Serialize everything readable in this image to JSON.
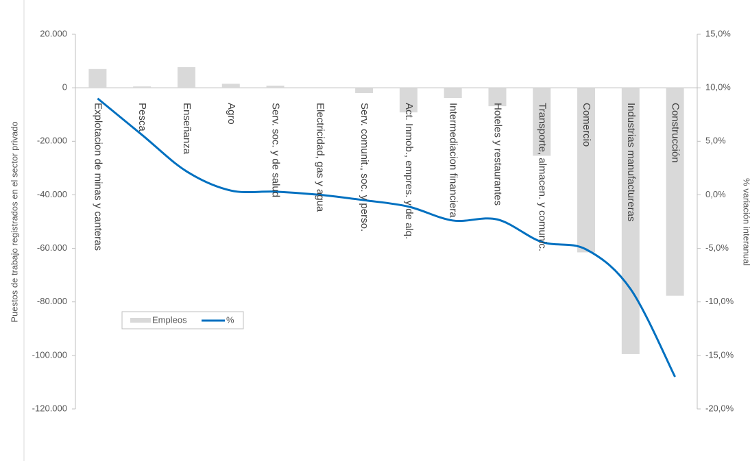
{
  "chart_data": {
    "type": "bar-line",
    "categories": [
      "Explotacion de minas y canteras",
      "Pesca",
      "Enseñanza",
      "Agro",
      "Serv. soc. y de salud",
      "Electricidad, gas y agua",
      "Serv. comunit., soc. y perso.",
      "Act. Inmob., empres. y de alq.",
      "Intermediacion financiera",
      "Hoteles y restaurantes",
      "Transporte, almacen. y comunic.",
      "Comercio",
      "Industrias manufactureras",
      "Construcción"
    ],
    "series": [
      {
        "name": "Empleos",
        "color": "#d9d9d9",
        "values": [
          7000,
          500,
          7700,
          1500,
          800,
          0,
          -2000,
          -9200,
          -3800,
          -6900,
          -25400,
          -61500,
          -99500,
          -77700
        ]
      },
      {
        "name": "%",
        "color": "#0070c0",
        "axis": "y2",
        "values": [
          9.0,
          5.6,
          2.2,
          0.4,
          0.3,
          0.0,
          -0.5,
          -1.1,
          -2.4,
          -2.3,
          -4.4,
          -5.1,
          -8.8,
          -17.0
        ]
      }
    ],
    "ylabel": "Puestos de trabajo registrados en el sector privado",
    "y2label": "% variación interanual",
    "ylim": [
      -120000,
      20000
    ],
    "yticks": [
      {
        "value": -120000,
        "label": "-120.000"
      },
      {
        "value": -100000,
        "label": "-100.000"
      },
      {
        "value": -80000,
        "label": "-80.000"
      },
      {
        "value": -60000,
        "label": "-60.000"
      },
      {
        "value": -40000,
        "label": "-40.000"
      },
      {
        "value": -20000,
        "label": "-20.000"
      },
      0,
      {
        "value": 20000,
        "label": "20.000"
      }
    ],
    "y2lim": [
      -20,
      15
    ],
    "y2ticks": [
      {
        "value": -20,
        "label": "-20,0%"
      },
      {
        "value": -15,
        "label": "-15,0%"
      },
      {
        "value": -10,
        "label": "-10,0%"
      },
      {
        "value": -5,
        "label": "-5,0%"
      },
      {
        "value": 0,
        "label": "0,0%"
      },
      {
        "value": 5,
        "label": "5,0%"
      },
      {
        "value": 10,
        "label": "10,0%"
      },
      {
        "value": 15,
        "label": "15,0%"
      }
    ]
  }
}
